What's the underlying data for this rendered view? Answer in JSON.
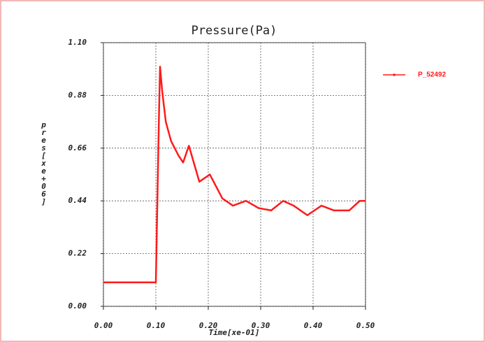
{
  "chart_data": {
    "type": "line",
    "title": "Pressure(Pa)",
    "x_label": "Time[xe-01]",
    "y_label": "pres[xe+06]",
    "xlim": [
      0,
      0.5
    ],
    "ylim": [
      0,
      1.1
    ],
    "xticks": [
      {
        "value": 0,
        "label": "0.00"
      },
      {
        "value": 0.1,
        "label": "0.10"
      },
      {
        "value": 0.2,
        "label": "0.20"
      },
      {
        "value": 0.3,
        "label": "0.30"
      },
      {
        "value": 0.4,
        "label": "0.40"
      },
      {
        "value": 0.5,
        "label": "0.50"
      }
    ],
    "yticks": [
      {
        "value": 0,
        "label": "0.00"
      },
      0.22,
      0.44,
      0.66,
      0.88,
      {
        "value": 1.1,
        "label": "1.10"
      }
    ],
    "grid": true,
    "legend": "right",
    "series": [
      {
        "name": "P_52492",
        "color": "#ff1a1a",
        "x": [
          0,
          0.05,
          0.1,
          0.103,
          0.106,
          0.108,
          0.112,
          0.119,
          0.129,
          0.143,
          0.152,
          0.163,
          0.183,
          0.203,
          0.227,
          0.247,
          0.272,
          0.296,
          0.32,
          0.343,
          0.363,
          0.389,
          0.416,
          0.44,
          0.469,
          0.489,
          0.5
        ],
        "values": [
          0.1,
          0.1,
          0.1,
          0.45,
          0.8,
          1.0,
          0.9,
          0.77,
          0.69,
          0.63,
          0.6,
          0.67,
          0.52,
          0.55,
          0.45,
          0.42,
          0.44,
          0.41,
          0.4,
          0.44,
          0.42,
          0.38,
          0.42,
          0.4,
          0.4,
          0.44,
          0.44
        ]
      }
    ]
  }
}
